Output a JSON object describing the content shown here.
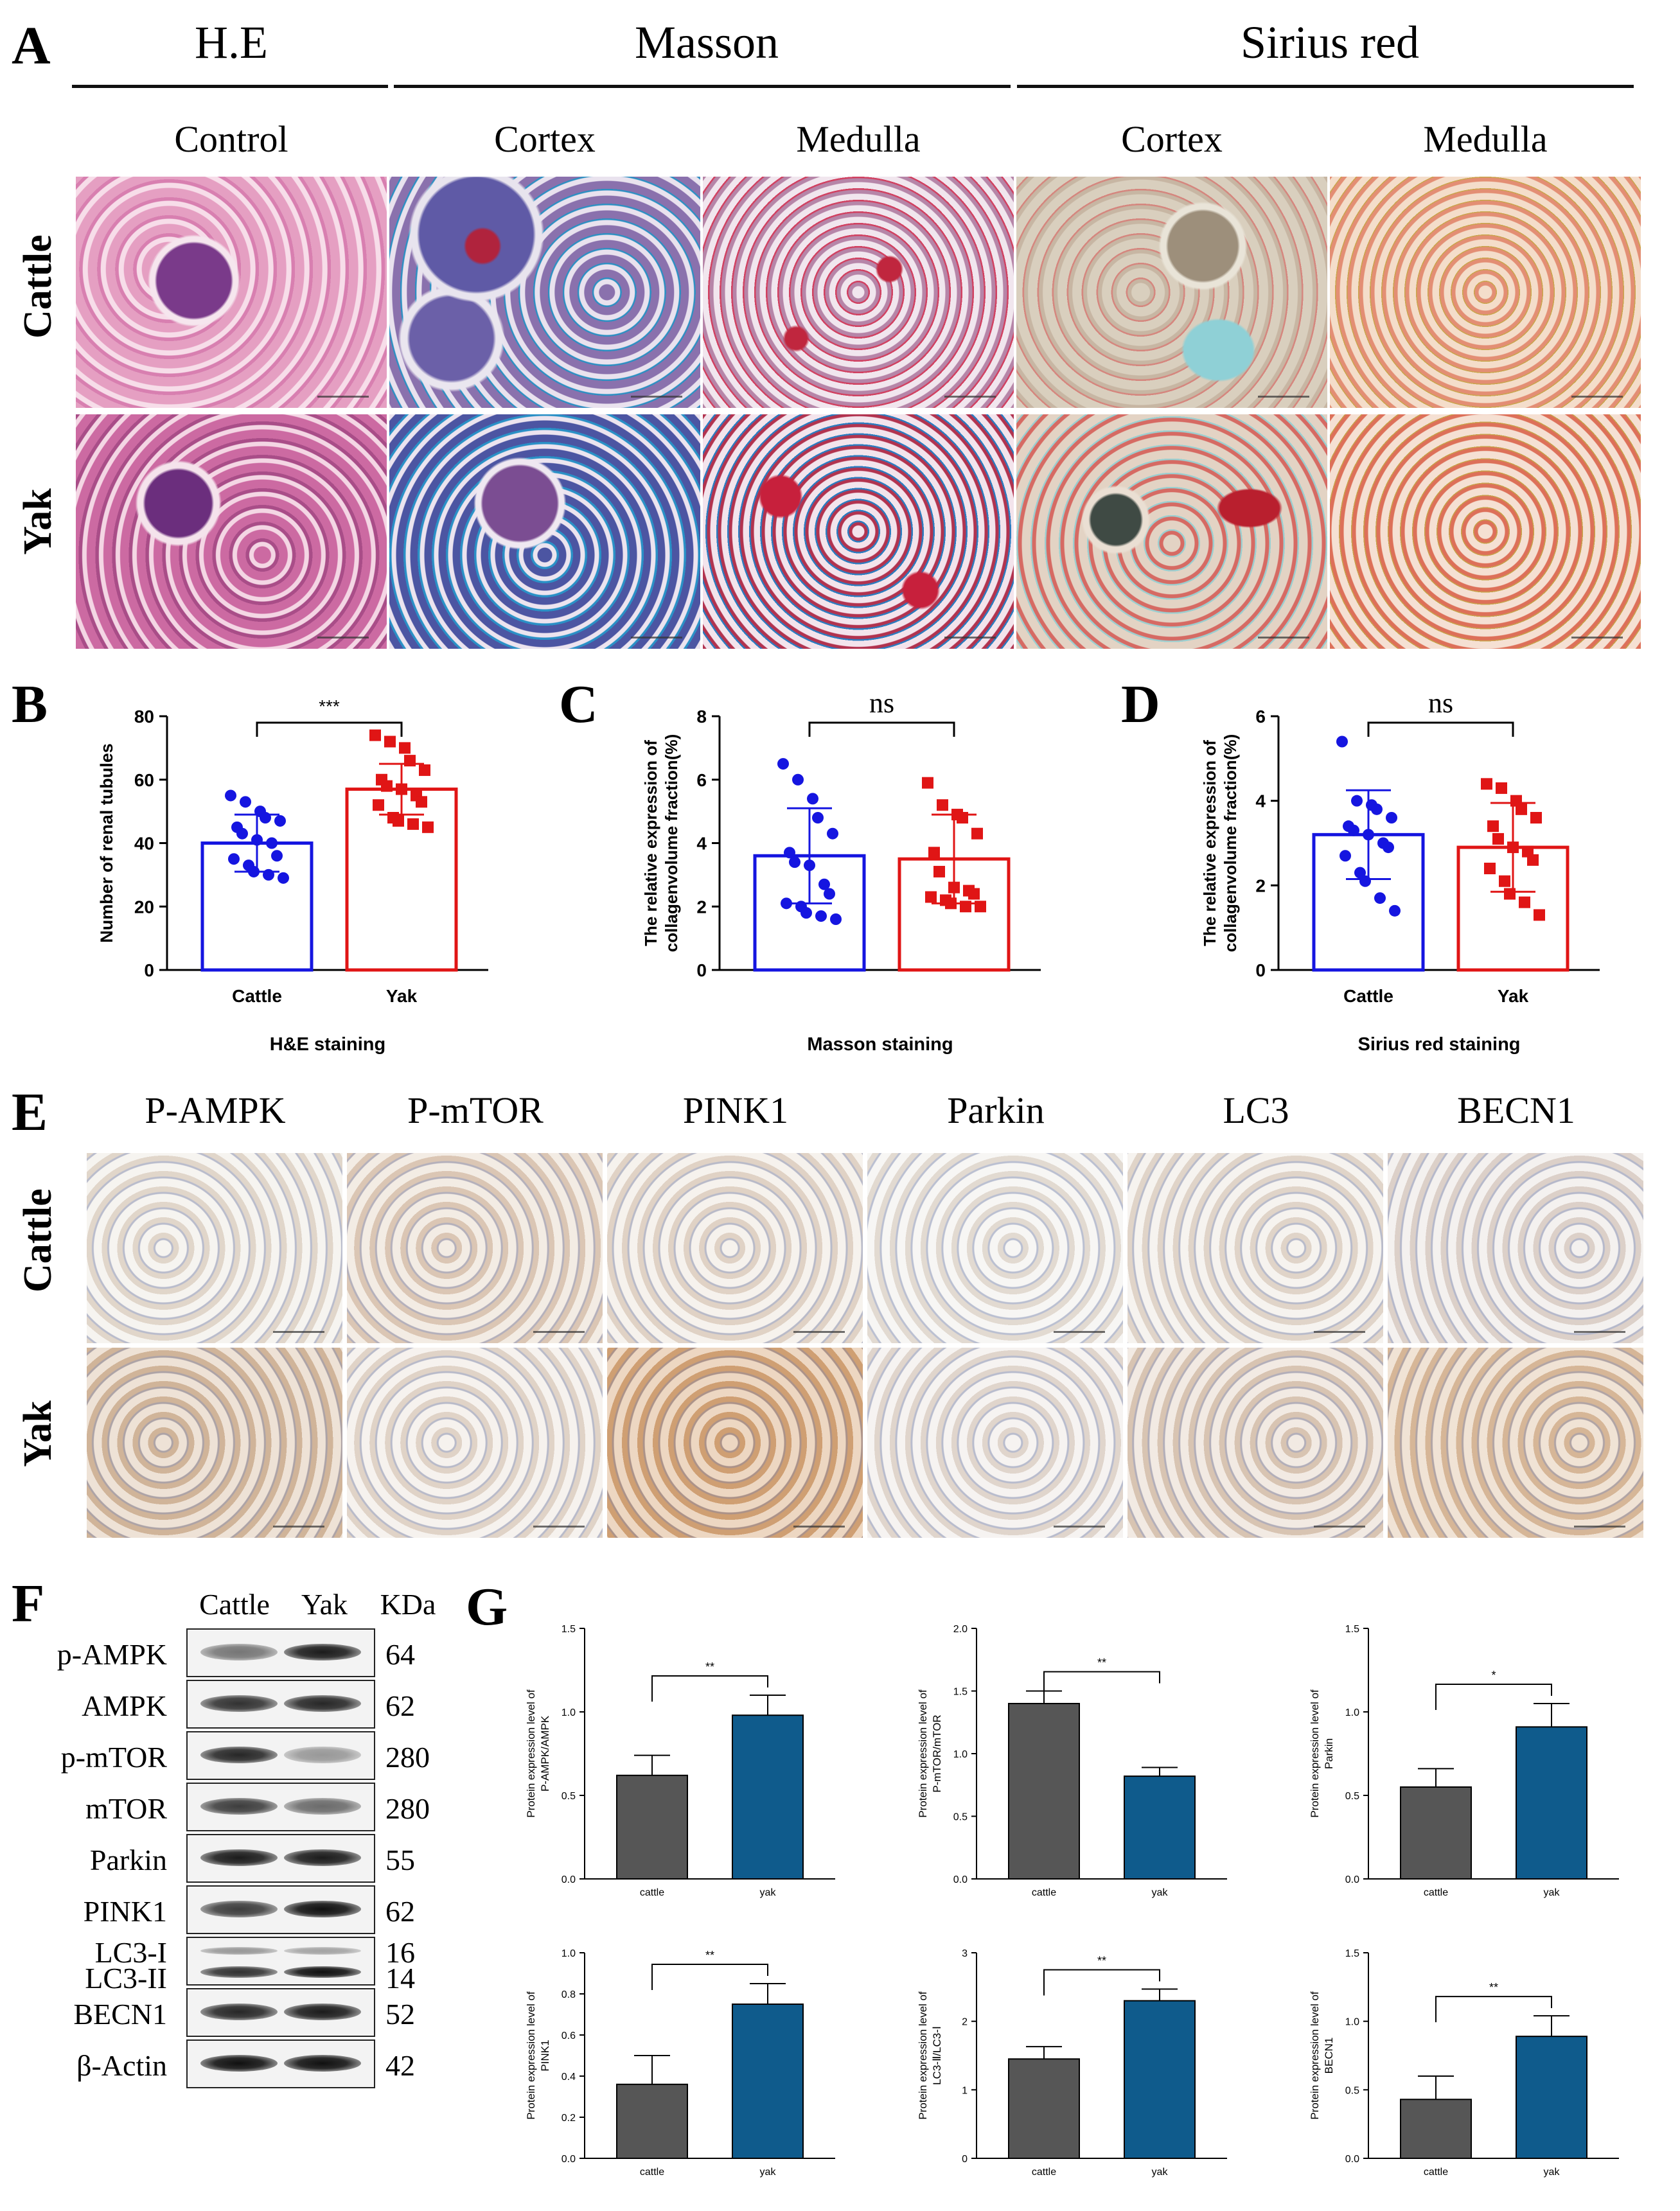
{
  "panel_labels": {
    "A": "A",
    "B": "B",
    "C": "C",
    "D": "D",
    "E": "E",
    "F": "F",
    "G": "G"
  },
  "panel_a": {
    "group_headers": [
      "H.E",
      "Masson",
      "Sirius red"
    ],
    "column_labels": [
      "Control",
      "Cortex",
      "Medulla",
      "Cortex",
      "Medulla"
    ],
    "row_labels": [
      "Cattle",
      "Yak"
    ],
    "tile_colors": {
      "he": [
        "#e9a9c8",
        "#c25c97"
      ],
      "masson_cortex": [
        "#9b7fb0",
        "#3a4b9c"
      ],
      "masson_medulla": [
        "#caa0bf",
        "#b2334f"
      ],
      "sirius_cortex": [
        "#c9bfae",
        "#d66a63"
      ],
      "sirius_medulla": [
        "#efc3a7",
        "#dd7059"
      ]
    }
  },
  "panel_e": {
    "column_labels": [
      "P-AMPK",
      "P-mTOR",
      "PINK1",
      "Parkin",
      "LC3",
      "BECN1"
    ],
    "row_labels": [
      "Cattle",
      "Yak"
    ],
    "tile_colors": {
      "cattle": [
        "#ece6de",
        "#e5d4c4",
        "#ebe2d8",
        "#eeebe6",
        "#ebe4dc",
        "#e6e0dc"
      ],
      "yak": [
        "#d9bfa4",
        "#ebe3da",
        "#d7a677",
        "#ebe5e0",
        "#e2d1c1",
        "#dfc1a2"
      ]
    }
  },
  "panel_f": {
    "header": [
      "Cattle",
      "Yak",
      "KDa"
    ],
    "rows": [
      {
        "label": "p-AMPK",
        "kda": "64"
      },
      {
        "label": "AMPK",
        "kda": "62"
      },
      {
        "label": "p-mTOR",
        "kda": "280"
      },
      {
        "label": "mTOR",
        "kda": "280"
      },
      {
        "label": "Parkin",
        "kda": "55"
      },
      {
        "label": "PINK1",
        "kda": "62"
      },
      {
        "label": "LC3-I",
        "kda": "16"
      },
      {
        "label": "LC3-II",
        "kda": "14"
      },
      {
        "label": "BECN1",
        "kda": "52"
      },
      {
        "label": "β-Actin",
        "kda": "42"
      }
    ]
  },
  "chart_data": [
    {
      "id": "B",
      "type": "bar",
      "categories": [
        "Cattle",
        "Yak"
      ],
      "values": [
        40,
        57
      ],
      "errors": [
        9,
        8
      ],
      "points": [
        [
          55,
          53,
          50,
          48,
          47,
          45,
          43,
          41,
          40,
          36,
          35,
          33,
          31,
          30,
          29
        ],
        [
          74,
          72,
          70,
          66,
          63,
          60,
          58,
          57,
          55,
          53,
          52,
          48,
          47,
          46,
          45
        ]
      ],
      "ylabel": "Number of renal tubules",
      "xlabel": "H&E staining",
      "ylim": [
        0,
        80
      ],
      "yticks": [
        "0",
        "20",
        "40",
        "60",
        "80"
      ],
      "significance": "***",
      "colors": [
        "#1515e0",
        "#e01515"
      ],
      "markers": [
        "circle",
        "square"
      ]
    },
    {
      "id": "C",
      "type": "bar",
      "categories": [
        "",
        ""
      ],
      "values": [
        3.6,
        3.5
      ],
      "errors": [
        1.5,
        1.4
      ],
      "points": [
        [
          6.5,
          6.0,
          5.4,
          4.8,
          4.3,
          3.7,
          3.4,
          3.3,
          2.7,
          2.4,
          2.1,
          2.0,
          1.8,
          1.7,
          1.6
        ],
        [
          5.9,
          5.2,
          4.9,
          4.8,
          4.3,
          3.7,
          3.1,
          2.6,
          2.5,
          2.4,
          2.3,
          2.2,
          2.1,
          2.0,
          2.0
        ]
      ],
      "ylabel": "The relative expression of collagenvolume fraction(%)",
      "xlabel": "Masson staining",
      "ylim": [
        0,
        8
      ],
      "yticks": [
        "0",
        "2",
        "4",
        "6",
        "8"
      ],
      "significance": "ns",
      "colors": [
        "#1515e0",
        "#e01515"
      ],
      "markers": [
        "circle",
        "square"
      ]
    },
    {
      "id": "D",
      "type": "bar",
      "categories": [
        "Cattle",
        "Yak"
      ],
      "values": [
        3.2,
        2.9
      ],
      "errors": [
        1.05,
        1.05
      ],
      "points": [
        [
          5.4,
          4.0,
          3.9,
          3.8,
          3.6,
          3.4,
          3.3,
          3.2,
          3.0,
          2.9,
          2.7,
          2.3,
          2.1,
          1.7,
          1.4
        ],
        [
          4.4,
          4.3,
          4.0,
          3.8,
          3.6,
          3.4,
          3.1,
          2.9,
          2.8,
          2.6,
          2.4,
          2.1,
          1.8,
          1.6,
          1.3
        ]
      ],
      "ylabel": "The relative expression of collagenvolume fraction(%)",
      "xlabel": "Sirius red staining",
      "ylim": [
        0,
        6
      ],
      "yticks": [
        "0",
        "2",
        "4",
        "6"
      ],
      "significance": "ns",
      "colors": [
        "#1515e0",
        "#e01515"
      ],
      "markers": [
        "circle",
        "square"
      ]
    },
    {
      "id": "G1",
      "type": "bar",
      "categories": [
        "cattle",
        "yak"
      ],
      "values": [
        0.62,
        0.98
      ],
      "errors": [
        0.12,
        0.12
      ],
      "ylabel": "Protein expression level of P-AMPK/AMPK",
      "ylim": [
        0,
        1.5
      ],
      "yticks": [
        "0.0",
        "0.5",
        "1.0",
        "1.5"
      ],
      "significance": "**",
      "colors": [
        "#565656",
        "#0f5b8c"
      ]
    },
    {
      "id": "G2",
      "type": "bar",
      "categories": [
        "cattle",
        "yak"
      ],
      "values": [
        1.4,
        0.82
      ],
      "errors": [
        0.1,
        0.07
      ],
      "ylabel": "Protein expression level of P-mTOR/mTOR",
      "ylim": [
        0,
        2.0
      ],
      "yticks": [
        "0.0",
        "0.5",
        "1.0",
        "1.5",
        "2.0"
      ],
      "significance": "**",
      "colors": [
        "#565656",
        "#0f5b8c"
      ]
    },
    {
      "id": "G3",
      "type": "bar",
      "categories": [
        "cattle",
        "yak"
      ],
      "values": [
        0.55,
        0.91
      ],
      "errors": [
        0.11,
        0.14
      ],
      "ylabel": "Protein expression level of Parkin",
      "ylim": [
        0,
        1.5
      ],
      "yticks": [
        "0.0",
        "0.5",
        "1.0",
        "1.5"
      ],
      "significance": "*",
      "colors": [
        "#565656",
        "#0f5b8c"
      ]
    },
    {
      "id": "G4",
      "type": "bar",
      "categories": [
        "cattle",
        "yak"
      ],
      "values": [
        0.36,
        0.75
      ],
      "errors": [
        0.14,
        0.1
      ],
      "ylabel": "Protein expression level of PINK1",
      "ylim": [
        0,
        1.0
      ],
      "yticks": [
        "0.0",
        "0.2",
        "0.4",
        "0.6",
        "0.8",
        "1.0"
      ],
      "significance": "**",
      "colors": [
        "#565656",
        "#0f5b8c"
      ]
    },
    {
      "id": "G5",
      "type": "bar",
      "categories": [
        "cattle",
        "yak"
      ],
      "values": [
        1.45,
        2.3
      ],
      "errors": [
        0.18,
        0.17
      ],
      "ylabel": "Protein expression level of LC3-Ⅱ/LC3-Ⅰ",
      "ylim": [
        0,
        3
      ],
      "yticks": [
        "0",
        "1",
        "2",
        "3"
      ],
      "significance": "**",
      "colors": [
        "#565656",
        "#0f5b8c"
      ]
    },
    {
      "id": "G6",
      "type": "bar",
      "categories": [
        "cattle",
        "yak"
      ],
      "values": [
        0.43,
        0.89
      ],
      "errors": [
        0.17,
        0.15
      ],
      "ylabel": "Protein expression level of BECN1",
      "ylim": [
        0,
        1.5
      ],
      "yticks": [
        "0.0",
        "0.5",
        "1.0",
        "1.5"
      ],
      "significance": "**",
      "colors": [
        "#565656",
        "#0f5b8c"
      ]
    }
  ]
}
